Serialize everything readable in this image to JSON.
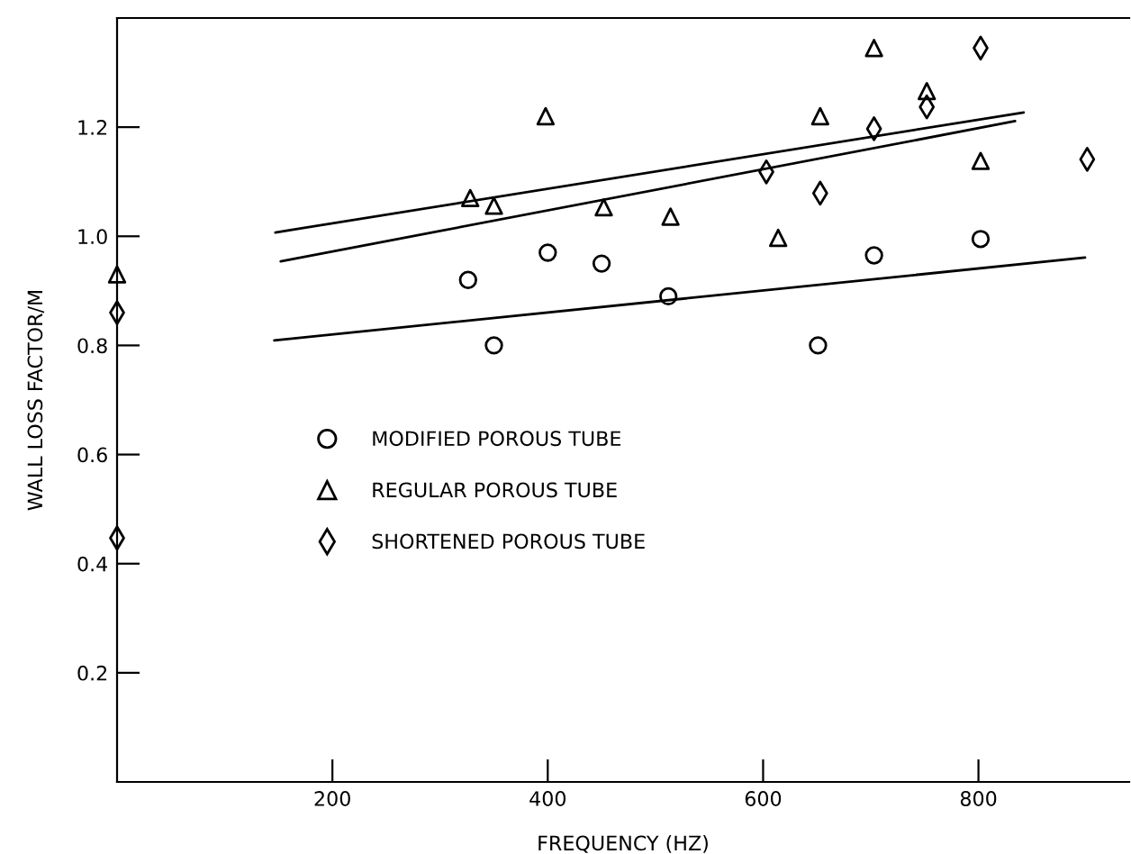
{
  "chart_data": {
    "type": "scatter",
    "xlabel": "FREQUENCY (HZ)",
    "ylabel": "WALL LOSS FACTOR/M",
    "xlim": [
      0,
      940
    ],
    "ylim": [
      0,
      1.4
    ],
    "xticks": [
      200,
      400,
      600,
      800
    ],
    "yticks": [
      0.2,
      0.4,
      0.6,
      0.8,
      {
        "value": 1,
        "label": "1.0"
      },
      1.2
    ],
    "grid": false,
    "legend": "center left",
    "series": [
      {
        "name": "MODIFIED POROUS TUBE",
        "color": "#000000",
        "marker": "circle",
        "x": [
          326,
          350,
          400,
          450,
          512,
          651,
          703,
          802
        ],
        "values": [
          0.92,
          0.8,
          0.97,
          0.95,
          0.89,
          0.8,
          0.965,
          0.995
        ]
      },
      {
        "name": "REGULAR POROUS TUBE",
        "color": "#000000",
        "marker": "triangle",
        "x": [
          0,
          328,
          350,
          398,
          452,
          514,
          614,
          653,
          703,
          752,
          802
        ],
        "values": [
          0.93,
          1.07,
          1.056,
          1.22,
          1.053,
          1.036,
          0.997,
          1.22,
          1.345,
          1.266,
          1.138
        ]
      },
      {
        "name": "SHORTENED POROUS TUBE",
        "color": "#000000",
        "marker": "diamond",
        "x": [
          0,
          0,
          603,
          653,
          703,
          752,
          802,
          901
        ],
        "values": [
          0.86,
          0.447,
          1.118,
          1.079,
          1.197,
          1.237,
          1.345,
          1.141
        ]
      },
      {
        "type": "line",
        "color": "#000000",
        "x": [
          147,
          842
        ],
        "values": [
          1.007,
          1.227
        ]
      },
      {
        "type": "line",
        "color": "#000000",
        "x": [
          152,
          834
        ],
        "values": [
          0.954,
          1.211
        ]
      },
      {
        "type": "line",
        "color": "#000000",
        "x": [
          146,
          899
        ],
        "values": [
          0.809,
          0.961
        ]
      }
    ]
  }
}
